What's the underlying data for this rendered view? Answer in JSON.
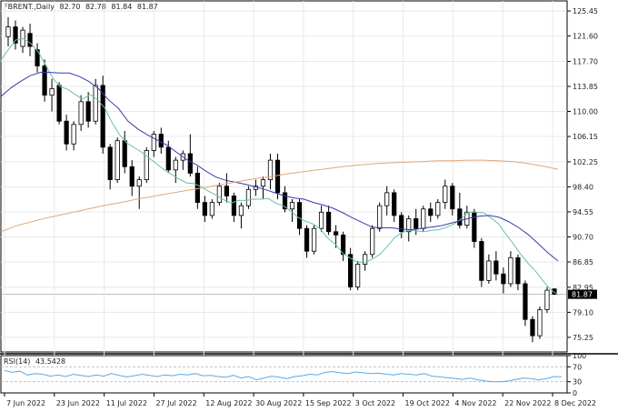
{
  "header": {
    "symbol": "FBRENT.,Daily",
    "open": "82.70",
    "high": "82.78",
    "low": "81.84",
    "close": "81.87"
  },
  "rsi_header": {
    "label": "RSI(14)",
    "value": "43.5428"
  },
  "colors": {
    "bull_body": "#ffffff",
    "bear_body": "#000000",
    "ma_fast": "#6bbfae",
    "ma_mid": "#3a3ab0",
    "ma_slow": "#e0a87a",
    "rsi_line": "#5aa9e6",
    "grid": "#e8e8e8"
  },
  "chart_data": [
    {
      "type": "candlestick",
      "title": "FBRENT.,Daily",
      "ylim": [
        73.0,
        127.0
      ],
      "y_ticks": [
        "125.45",
        "121.60",
        "117.70",
        "113.85",
        "110.00",
        "106.15",
        "102.25",
        "98.40",
        "94.55",
        "90.70",
        "86.85",
        "82.95",
        "79.10",
        "75.25"
      ],
      "x_ticks": [
        "7 Jun 2022",
        "23 Jun 2022",
        "11 Jul 2022",
        "27 Jul 2022",
        "12 Aug 2022",
        "30 Aug 2022",
        "15 Sep 2022",
        "3 Oct 2022",
        "19 Oct 2022",
        "4 Nov 2022",
        "22 Nov 2022",
        "8 Dec 2022"
      ],
      "last_price": "81.87",
      "grid": true,
      "series": [
        {
          "name": "Fast MA",
          "values": [
            117.9,
            119.5,
            121.0,
            121.2,
            120.5,
            119.2,
            117.2,
            115.1,
            113.8,
            113.4,
            112.6,
            111.9,
            112.6,
            111.8,
            110.5,
            108.2,
            106.4,
            105.1,
            104.4,
            103.7,
            102.8,
            101.9,
            101.0,
            100.3,
            99.6,
            99.0,
            98.9,
            98.4,
            97.7,
            97.1,
            96.4,
            95.9,
            96.3,
            96.3,
            96.5,
            96.5,
            96.6,
            95.9,
            95.5,
            94.7,
            93.7,
            93.1,
            92.7,
            91.9,
            90.5,
            89.6,
            88.2,
            87.5,
            86.8,
            86.8,
            87.3,
            88.0,
            89.2,
            90.6,
            91.4,
            91.7,
            91.6,
            91.5,
            91.7,
            91.8,
            92.2,
            92.7,
            93.5,
            94.5,
            94.5,
            94.4,
            93.6,
            92.7,
            91.1,
            89.6,
            88.0,
            86.6,
            85.4,
            83.9,
            82.6,
            81.8
          ]
        },
        {
          "name": "Mid MA",
          "values": [
            112.3,
            113.6,
            114.6,
            115.5,
            116.0,
            116.0,
            115.9,
            115.9,
            115.4,
            114.6,
            113.5,
            111.8,
            110.5,
            108.5,
            107.3,
            106.4,
            105.6,
            104.8,
            103.7,
            102.6,
            101.8,
            100.8,
            99.9,
            99.4,
            99.1,
            98.8,
            98.4,
            98.0,
            97.5,
            97.0,
            96.7,
            96.5,
            96.0,
            95.6,
            95.1,
            94.4,
            93.6,
            92.9,
            92.2,
            92.1,
            92.1,
            91.9,
            91.8,
            92.0,
            92.2,
            92.4,
            92.8,
            93.2,
            93.6,
            93.9,
            94.0,
            93.7,
            93.0,
            92.1,
            91.0,
            89.6,
            88.2,
            87.0
          ]
        },
        {
          "name": "Slow MA",
          "values": [
            91.5,
            92.4,
            93.0,
            93.6,
            94.1,
            94.6,
            95.1,
            95.6,
            96.0,
            96.5,
            96.9,
            97.3,
            97.7,
            98.1,
            98.5,
            98.9,
            99.3,
            99.7,
            100.0,
            100.4,
            100.7,
            101.0,
            101.3,
            101.6,
            101.8,
            102.0,
            102.1,
            102.2,
            102.3,
            102.4,
            102.4,
            102.5,
            102.5,
            102.4,
            102.3,
            102.0,
            101.6,
            101.1
          ]
        },
        {
          "name": "RSI(14)",
          "values": [
            60,
            55,
            58,
            48,
            52,
            50,
            45,
            48,
            44,
            50,
            47,
            44,
            48,
            45,
            52,
            47,
            43,
            46,
            50,
            47,
            44,
            48,
            46,
            50,
            48,
            52,
            46,
            47,
            44,
            42,
            47,
            40,
            44,
            35,
            40,
            45,
            42,
            38,
            44,
            46,
            50,
            48,
            55,
            57,
            54,
            52,
            56,
            54,
            52,
            53,
            50,
            48,
            52,
            50,
            48,
            52,
            45,
            43,
            41,
            39,
            36,
            40,
            35,
            32,
            30,
            30,
            32,
            36,
            40,
            38,
            35,
            38,
            44,
            43.5
          ]
        }
      ],
      "candles": [
        {
          "open": 121.5,
          "high": 124.5,
          "low": 120.0,
          "close": 123.0
        },
        {
          "open": 123.0,
          "high": 124.0,
          "low": 119.5,
          "close": 120.5
        },
        {
          "open": 120.0,
          "high": 123.0,
          "low": 119.0,
          "close": 122.5
        },
        {
          "open": 122.0,
          "high": 123.5,
          "low": 118.5,
          "close": 120.0
        },
        {
          "open": 119.5,
          "high": 120.5,
          "low": 116.0,
          "close": 117.0
        },
        {
          "open": 117.0,
          "high": 118.0,
          "low": 111.5,
          "close": 112.5
        },
        {
          "open": 112.5,
          "high": 115.0,
          "low": 110.0,
          "close": 113.5
        },
        {
          "open": 114.0,
          "high": 114.5,
          "low": 108.0,
          "close": 108.5
        },
        {
          "open": 108.5,
          "high": 109.5,
          "low": 104.0,
          "close": 105.0
        },
        {
          "open": 105.0,
          "high": 108.5,
          "low": 104.0,
          "close": 108.0
        },
        {
          "open": 108.0,
          "high": 112.5,
          "low": 107.0,
          "close": 111.5
        },
        {
          "open": 111.5,
          "high": 113.0,
          "low": 107.5,
          "close": 108.5
        },
        {
          "open": 108.5,
          "high": 115.0,
          "low": 108.0,
          "close": 114.0
        },
        {
          "open": 114.0,
          "high": 115.5,
          "low": 103.5,
          "close": 104.5
        },
        {
          "open": 104.5,
          "high": 105.0,
          "low": 98.0,
          "close": 99.5
        },
        {
          "open": 99.5,
          "high": 106.0,
          "low": 99.0,
          "close": 105.5
        },
        {
          "open": 105.5,
          "high": 107.0,
          "low": 100.5,
          "close": 101.5
        },
        {
          "open": 101.5,
          "high": 102.5,
          "low": 97.0,
          "close": 98.5
        },
        {
          "open": 98.5,
          "high": 100.0,
          "low": 95.0,
          "close": 99.5
        },
        {
          "open": 99.5,
          "high": 104.5,
          "low": 99.0,
          "close": 104.0
        },
        {
          "open": 104.0,
          "high": 107.0,
          "low": 103.0,
          "close": 106.5
        },
        {
          "open": 106.5,
          "high": 107.5,
          "low": 103.5,
          "close": 104.5
        },
        {
          "open": 104.5,
          "high": 105.5,
          "low": 100.5,
          "close": 101.0
        },
        {
          "open": 101.0,
          "high": 103.0,
          "low": 99.0,
          "close": 102.5
        },
        {
          "open": 102.5,
          "high": 104.0,
          "low": 101.0,
          "close": 103.5
        },
        {
          "open": 103.5,
          "high": 106.5,
          "low": 100.0,
          "close": 100.5
        },
        {
          "open": 100.5,
          "high": 101.5,
          "low": 95.0,
          "close": 96.0
        },
        {
          "open": 96.0,
          "high": 97.0,
          "low": 93.0,
          "close": 94.0
        },
        {
          "open": 94.0,
          "high": 96.5,
          "low": 93.5,
          "close": 96.0
        },
        {
          "open": 96.0,
          "high": 99.0,
          "low": 95.5,
          "close": 98.5
        },
        {
          "open": 98.5,
          "high": 100.5,
          "low": 96.0,
          "close": 97.0
        },
        {
          "open": 97.0,
          "high": 97.5,
          "low": 93.0,
          "close": 94.0
        },
        {
          "open": 94.0,
          "high": 96.0,
          "low": 92.0,
          "close": 95.5
        },
        {
          "open": 95.5,
          "high": 98.5,
          "low": 95.0,
          "close": 98.0
        },
        {
          "open": 98.0,
          "high": 99.5,
          "low": 97.0,
          "close": 98.5
        },
        {
          "open": 98.5,
          "high": 100.0,
          "low": 96.5,
          "close": 99.5
        },
        {
          "open": 99.5,
          "high": 103.5,
          "low": 98.0,
          "close": 102.5
        },
        {
          "open": 102.5,
          "high": 103.5,
          "low": 96.5,
          "close": 97.5
        },
        {
          "open": 97.5,
          "high": 98.5,
          "low": 94.5,
          "close": 95.0
        },
        {
          "open": 95.0,
          "high": 96.5,
          "low": 93.0,
          "close": 96.0
        },
        {
          "open": 96.0,
          "high": 96.5,
          "low": 91.0,
          "close": 92.0
        },
        {
          "open": 92.0,
          "high": 92.5,
          "low": 87.5,
          "close": 88.5
        },
        {
          "open": 88.5,
          "high": 92.5,
          "low": 88.0,
          "close": 92.0
        },
        {
          "open": 92.0,
          "high": 95.5,
          "low": 91.5,
          "close": 94.5
        },
        {
          "open": 94.5,
          "high": 95.5,
          "low": 91.0,
          "close": 91.5
        },
        {
          "open": 91.5,
          "high": 92.5,
          "low": 89.0,
          "close": 91.0
        },
        {
          "open": 91.0,
          "high": 91.5,
          "low": 87.0,
          "close": 88.0
        },
        {
          "open": 88.0,
          "high": 89.0,
          "low": 82.5,
          "close": 83.0
        },
        {
          "open": 83.0,
          "high": 87.0,
          "low": 82.5,
          "close": 86.5
        },
        {
          "open": 86.5,
          "high": 88.5,
          "low": 85.5,
          "close": 88.0
        },
        {
          "open": 88.0,
          "high": 92.5,
          "low": 87.5,
          "close": 92.0
        },
        {
          "open": 92.0,
          "high": 96.0,
          "low": 91.5,
          "close": 95.5
        },
        {
          "open": 95.5,
          "high": 98.5,
          "low": 94.0,
          "close": 97.5
        },
        {
          "open": 97.5,
          "high": 98.0,
          "low": 93.0,
          "close": 94.0
        },
        {
          "open": 94.0,
          "high": 94.5,
          "low": 90.5,
          "close": 91.5
        },
        {
          "open": 91.5,
          "high": 94.0,
          "low": 90.0,
          "close": 93.5
        },
        {
          "open": 93.5,
          "high": 95.0,
          "low": 91.0,
          "close": 92.0
        },
        {
          "open": 92.0,
          "high": 95.5,
          "low": 91.5,
          "close": 95.0
        },
        {
          "open": 95.0,
          "high": 96.0,
          "low": 93.0,
          "close": 94.0
        },
        {
          "open": 94.0,
          "high": 96.5,
          "low": 93.5,
          "close": 96.0
        },
        {
          "open": 96.0,
          "high": 99.5,
          "low": 95.0,
          "close": 98.5
        },
        {
          "open": 98.5,
          "high": 99.0,
          "low": 94.0,
          "close": 95.0
        },
        {
          "open": 95.0,
          "high": 97.5,
          "low": 92.0,
          "close": 92.5
        },
        {
          "open": 92.5,
          "high": 95.5,
          "low": 92.0,
          "close": 94.5
        },
        {
          "open": 94.5,
          "high": 95.0,
          "low": 89.0,
          "close": 90.0
        },
        {
          "open": 90.0,
          "high": 90.5,
          "low": 83.0,
          "close": 84.0
        },
        {
          "open": 84.0,
          "high": 88.0,
          "low": 83.5,
          "close": 87.0
        },
        {
          "open": 87.0,
          "high": 88.5,
          "low": 84.0,
          "close": 85.0
        },
        {
          "open": 85.0,
          "high": 86.0,
          "low": 82.0,
          "close": 83.5
        },
        {
          "open": 83.5,
          "high": 88.5,
          "low": 83.0,
          "close": 87.5
        },
        {
          "open": 87.5,
          "high": 88.0,
          "low": 82.5,
          "close": 83.5
        },
        {
          "open": 83.5,
          "high": 84.0,
          "low": 77.0,
          "close": 78.0
        },
        {
          "open": 78.0,
          "high": 78.5,
          "low": 74.5,
          "close": 75.5
        },
        {
          "open": 75.5,
          "high": 80.0,
          "low": 75.0,
          "close": 79.5
        },
        {
          "open": 79.5,
          "high": 83.0,
          "low": 79.0,
          "close": 82.5
        },
        {
          "open": 82.7,
          "high": 82.78,
          "low": 81.84,
          "close": 81.87
        }
      ]
    },
    {
      "type": "line",
      "title": "RSI(14) 43.5428",
      "ylim": [
        0,
        100
      ],
      "y_ticks": [
        "100",
        "70",
        "30",
        "0"
      ],
      "grid": true
    }
  ]
}
